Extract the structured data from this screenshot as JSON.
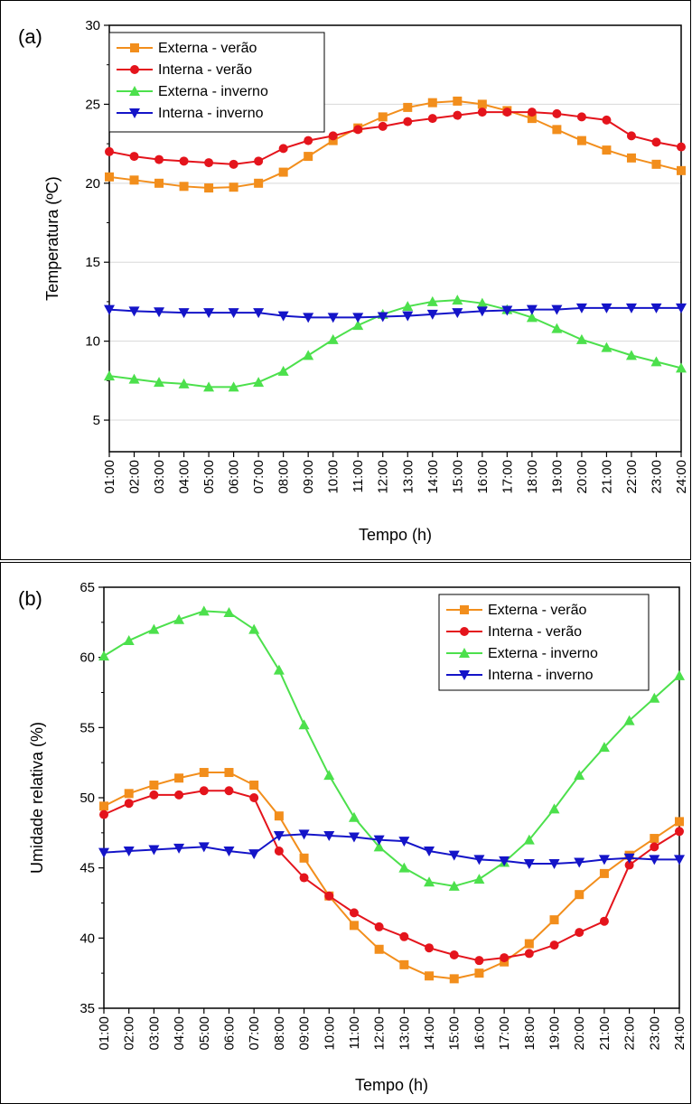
{
  "chart_data": [
    {
      "type": "line",
      "panel_label": "(a)",
      "title": "",
      "xlabel": "Tempo (h)",
      "ylabel": "Temperatura (ºC)",
      "ylim": [
        3,
        30
      ],
      "yticks": [
        5,
        10,
        15,
        20,
        25,
        30
      ],
      "grid": true,
      "legend": "top-left",
      "categories": [
        "01:00",
        "02:00",
        "03:00",
        "04:00",
        "05:00",
        "06:00",
        "07:00",
        "08:00",
        "09:00",
        "10:00",
        "11:00",
        "12:00",
        "13:00",
        "14:00",
        "15:00",
        "16:00",
        "17:00",
        "18:00",
        "19:00",
        "20:00",
        "21:00",
        "22:00",
        "23:00",
        "24:00"
      ],
      "series": [
        {
          "name": "Externa - verão",
          "color": "#f28e1c",
          "marker": "square",
          "values": [
            20.4,
            20.2,
            20.0,
            19.8,
            19.7,
            19.75,
            20.0,
            20.7,
            21.7,
            22.7,
            23.5,
            24.2,
            24.8,
            25.1,
            25.2,
            25.0,
            24.6,
            24.1,
            23.4,
            22.7,
            22.1,
            21.6,
            21.2,
            20.8
          ]
        },
        {
          "name": "Interna - verão",
          "color": "#e4141c",
          "marker": "circle",
          "values": [
            22.0,
            21.7,
            21.5,
            21.4,
            21.3,
            21.2,
            21.4,
            22.2,
            22.7,
            23.0,
            23.4,
            23.6,
            23.9,
            24.1,
            24.3,
            24.5,
            24.5,
            24.5,
            24.4,
            24.2,
            24.0,
            23.0,
            22.6,
            22.3
          ]
        },
        {
          "name": "Externa - inverno",
          "color": "#4ce04c",
          "marker": "triangle-up",
          "values": [
            7.8,
            7.6,
            7.4,
            7.3,
            7.1,
            7.1,
            7.4,
            8.1,
            9.1,
            10.1,
            11.0,
            11.7,
            12.2,
            12.5,
            12.6,
            12.4,
            12.0,
            11.5,
            10.8,
            10.1,
            9.6,
            9.1,
            8.7,
            8.3
          ]
        },
        {
          "name": "Interna - inverno",
          "color": "#1414c8",
          "marker": "triangle-down",
          "values": [
            12.0,
            11.9,
            11.85,
            11.8,
            11.8,
            11.8,
            11.8,
            11.6,
            11.5,
            11.5,
            11.5,
            11.55,
            11.6,
            11.7,
            11.8,
            11.9,
            11.95,
            12.0,
            12.0,
            12.1,
            12.1,
            12.1,
            12.1,
            12.1
          ]
        }
      ]
    },
    {
      "type": "line",
      "panel_label": "(b)",
      "title": "",
      "xlabel": "Tempo (h)",
      "ylabel": "Umidade relativa (%)",
      "ylim": [
        35,
        65
      ],
      "yticks": [
        35,
        40,
        45,
        50,
        55,
        60,
        65
      ],
      "grid": false,
      "legend": "top-right",
      "categories": [
        "01:00",
        "02:00",
        "03:00",
        "04:00",
        "05:00",
        "06:00",
        "07:00",
        "08:00",
        "09:00",
        "10:00",
        "11:00",
        "12:00",
        "13:00",
        "14:00",
        "15:00",
        "16:00",
        "17:00",
        "18:00",
        "19:00",
        "20:00",
        "21:00",
        "22:00",
        "23:00",
        "24:00"
      ],
      "series": [
        {
          "name": "Externa - verão",
          "color": "#f28e1c",
          "marker": "square",
          "values": [
            49.4,
            50.3,
            50.9,
            51.4,
            51.8,
            51.8,
            50.9,
            48.7,
            45.7,
            43.0,
            40.9,
            39.2,
            38.1,
            37.3,
            37.1,
            37.5,
            38.3,
            39.6,
            41.3,
            43.1,
            44.6,
            45.9,
            47.1,
            48.3
          ]
        },
        {
          "name": "Interna - verão",
          "color": "#e4141c",
          "marker": "circle",
          "values": [
            48.8,
            49.6,
            50.2,
            50.2,
            50.5,
            50.5,
            50.0,
            46.2,
            44.3,
            43.0,
            41.8,
            40.8,
            40.1,
            39.3,
            38.8,
            38.4,
            38.6,
            38.9,
            39.5,
            40.4,
            41.2,
            45.2,
            46.5,
            47.6
          ]
        },
        {
          "name": "Externa - inverno",
          "color": "#4ce04c",
          "marker": "triangle-up",
          "values": [
            60.1,
            61.2,
            62.0,
            62.7,
            63.3,
            63.2,
            62.0,
            59.1,
            55.2,
            51.6,
            48.6,
            46.5,
            45.0,
            44.0,
            43.7,
            44.2,
            45.4,
            47.0,
            49.2,
            51.6,
            53.6,
            55.5,
            57.1,
            58.7
          ]
        },
        {
          "name": "Interna - inverno",
          "color": "#1414c8",
          "marker": "triangle-down",
          "values": [
            46.1,
            46.2,
            46.3,
            46.4,
            46.5,
            46.2,
            46.0,
            47.3,
            47.4,
            47.3,
            47.2,
            47.0,
            46.9,
            46.2,
            45.9,
            45.6,
            45.5,
            45.3,
            45.3,
            45.4,
            45.6,
            45.7,
            45.6,
            45.6
          ]
        }
      ]
    }
  ]
}
